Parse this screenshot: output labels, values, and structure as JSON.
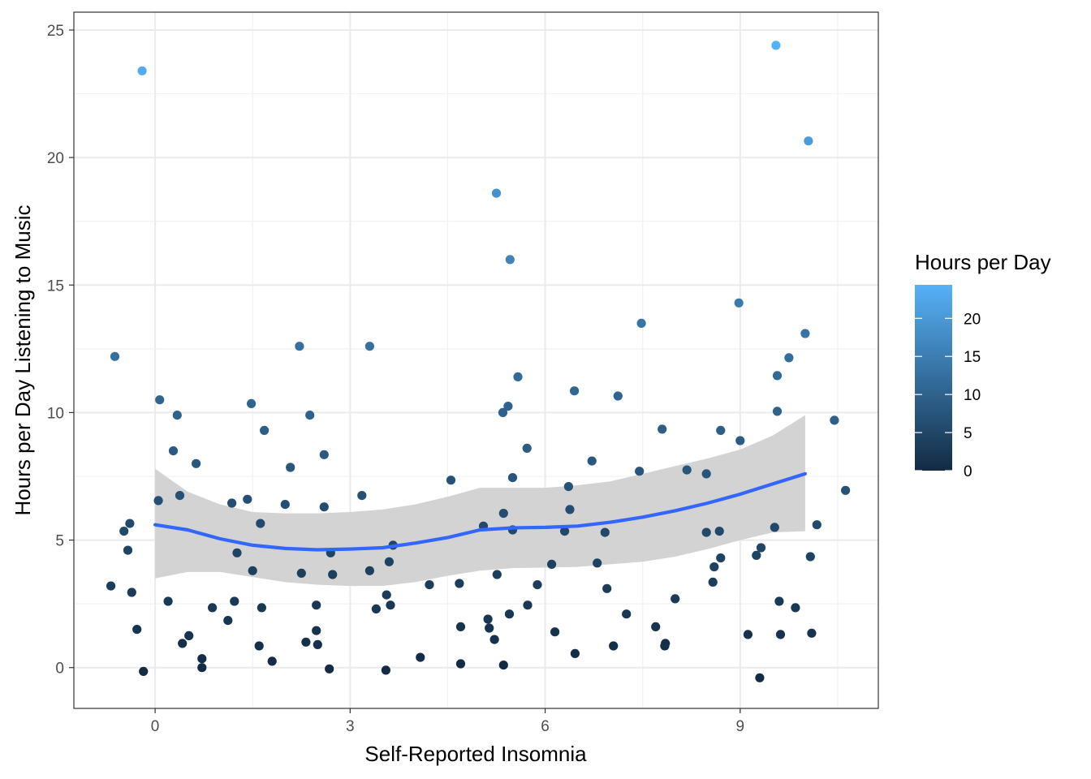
{
  "chart_data": {
    "type": "scatter",
    "title": "",
    "xlabel": "Self-Reported Insomnia",
    "ylabel": "Hours per Day Listening to Music",
    "xlim": [
      -1.25,
      11.125
    ],
    "ylim": [
      -1.6,
      25.7
    ],
    "x_ticks": [
      0,
      3,
      6,
      9
    ],
    "y_ticks": [
      0,
      5,
      10,
      15,
      20,
      25
    ],
    "grid": true,
    "legend": {
      "title": "Hours per Day",
      "position": "right",
      "type": "colorbar",
      "ticks": [
        0,
        5,
        10,
        15,
        20
      ],
      "range": [
        0,
        24.4
      ],
      "color_low": "#132B43",
      "color_high": "#56B1F7"
    },
    "colors": {
      "smooth_line": "#3366FF",
      "ribbon": "#D3D3D3",
      "panel_border": "#333333",
      "grid_major": "#EBEBEB",
      "grid_minor": "#F2F2F2"
    },
    "points": [
      [
        -0.68,
        3.2
      ],
      [
        -0.62,
        12.2
      ],
      [
        -0.48,
        5.35
      ],
      [
        -0.42,
        4.6
      ],
      [
        -0.39,
        5.65
      ],
      [
        -0.36,
        2.95
      ],
      [
        -0.28,
        1.5
      ],
      [
        -0.2,
        23.4
      ],
      [
        -0.18,
        -0.15
      ],
      [
        0.05,
        6.55
      ],
      [
        0.07,
        10.5
      ],
      [
        0.2,
        2.6
      ],
      [
        0.28,
        8.5
      ],
      [
        0.34,
        9.9
      ],
      [
        0.38,
        6.75
      ],
      [
        0.42,
        0.95
      ],
      [
        0.52,
        1.25
      ],
      [
        0.63,
        8.0
      ],
      [
        0.72,
        0.35
      ],
      [
        0.72,
        0.0
      ],
      [
        0.88,
        2.35
      ],
      [
        1.12,
        1.85
      ],
      [
        1.18,
        6.45
      ],
      [
        1.22,
        2.6
      ],
      [
        1.26,
        4.5
      ],
      [
        1.42,
        6.6
      ],
      [
        1.48,
        10.35
      ],
      [
        1.5,
        3.8
      ],
      [
        1.6,
        0.85
      ],
      [
        1.62,
        5.65
      ],
      [
        1.64,
        2.35
      ],
      [
        1.68,
        9.3
      ],
      [
        1.8,
        0.25
      ],
      [
        2.0,
        6.4
      ],
      [
        2.08,
        7.85
      ],
      [
        2.22,
        12.6
      ],
      [
        2.25,
        3.7
      ],
      [
        2.32,
        1.0
      ],
      [
        2.38,
        9.9
      ],
      [
        2.48,
        1.45
      ],
      [
        2.48,
        2.45
      ],
      [
        2.5,
        0.9
      ],
      [
        2.6,
        8.35
      ],
      [
        2.6,
        6.3
      ],
      [
        2.68,
        -0.05
      ],
      [
        2.7,
        4.5
      ],
      [
        2.73,
        3.65
      ],
      [
        3.18,
        6.75
      ],
      [
        3.3,
        12.6
      ],
      [
        3.3,
        3.8
      ],
      [
        3.4,
        2.3
      ],
      [
        3.55,
        -0.1
      ],
      [
        3.56,
        2.85
      ],
      [
        3.6,
        4.15
      ],
      [
        3.62,
        2.45
      ],
      [
        3.66,
        4.8
      ],
      [
        4.08,
        0.4
      ],
      [
        4.22,
        3.25
      ],
      [
        4.55,
        7.35
      ],
      [
        4.68,
        3.3
      ],
      [
        4.7,
        1.6
      ],
      [
        4.7,
        0.15
      ],
      [
        5.05,
        5.55
      ],
      [
        5.12,
        1.9
      ],
      [
        5.14,
        1.55
      ],
      [
        5.22,
        1.1
      ],
      [
        5.25,
        18.6
      ],
      [
        5.26,
        3.65
      ],
      [
        5.35,
        10.0
      ],
      [
        5.36,
        6.05
      ],
      [
        5.36,
        0.1
      ],
      [
        5.43,
        10.25
      ],
      [
        5.45,
        2.1
      ],
      [
        5.46,
        16.0
      ],
      [
        5.5,
        5.4
      ],
      [
        5.5,
        7.45
      ],
      [
        5.58,
        11.4
      ],
      [
        5.72,
        8.6
      ],
      [
        5.73,
        2.45
      ],
      [
        5.88,
        3.25
      ],
      [
        6.1,
        4.05
      ],
      [
        6.15,
        1.4
      ],
      [
        6.3,
        5.35
      ],
      [
        6.36,
        7.1
      ],
      [
        6.38,
        6.2
      ],
      [
        6.45,
        10.85
      ],
      [
        6.46,
        0.55
      ],
      [
        6.72,
        8.1
      ],
      [
        6.8,
        4.1
      ],
      [
        6.92,
        5.3
      ],
      [
        6.95,
        3.1
      ],
      [
        7.05,
        0.85
      ],
      [
        7.12,
        10.65
      ],
      [
        7.25,
        2.1
      ],
      [
        7.45,
        7.7
      ],
      [
        7.48,
        13.5
      ],
      [
        7.7,
        1.6
      ],
      [
        7.8,
        9.35
      ],
      [
        7.84,
        0.85
      ],
      [
        7.85,
        0.95
      ],
      [
        8.0,
        2.7
      ],
      [
        8.18,
        7.75
      ],
      [
        8.48,
        5.3
      ],
      [
        8.48,
        7.6
      ],
      [
        8.58,
        3.35
      ],
      [
        8.6,
        3.95
      ],
      [
        8.68,
        5.35
      ],
      [
        8.7,
        4.3
      ],
      [
        8.7,
        9.3
      ],
      [
        8.98,
        14.3
      ],
      [
        9.0,
        8.9
      ],
      [
        9.12,
        1.3
      ],
      [
        9.25,
        4.4
      ],
      [
        9.3,
        -0.4
      ],
      [
        9.32,
        4.7
      ],
      [
        9.53,
        5.5
      ],
      [
        9.55,
        24.4
      ],
      [
        9.57,
        11.45
      ],
      [
        9.57,
        10.05
      ],
      [
        9.6,
        2.6
      ],
      [
        9.62,
        1.3
      ],
      [
        9.75,
        12.15
      ],
      [
        9.85,
        2.35
      ],
      [
        10.0,
        13.1
      ],
      [
        10.05,
        20.65
      ],
      [
        10.08,
        4.35
      ],
      [
        10.1,
        1.35
      ],
      [
        10.18,
        5.6
      ],
      [
        10.45,
        9.7
      ],
      [
        10.62,
        6.95
      ]
    ],
    "smooth": {
      "x": [
        0.0,
        0.5,
        1.0,
        1.5,
        2.0,
        2.5,
        3.0,
        3.5,
        4.0,
        4.5,
        5.0,
        5.5,
        6.0,
        6.5,
        7.0,
        7.5,
        8.0,
        8.5,
        9.0,
        9.5,
        10.0
      ],
      "y": [
        5.6,
        5.4,
        5.05,
        4.8,
        4.67,
        4.62,
        4.65,
        4.7,
        4.88,
        5.1,
        5.4,
        5.48,
        5.5,
        5.55,
        5.7,
        5.9,
        6.15,
        6.45,
        6.8,
        7.2,
        7.6
      ],
      "lower": [
        3.5,
        3.75,
        3.75,
        3.55,
        3.35,
        3.25,
        3.2,
        3.2,
        3.35,
        3.6,
        3.8,
        3.9,
        3.92,
        3.95,
        4.05,
        4.15,
        4.35,
        4.65,
        5.0,
        5.3,
        5.35
      ],
      "upper": [
        7.8,
        6.9,
        6.4,
        6.1,
        6.05,
        6.05,
        6.1,
        6.2,
        6.4,
        6.7,
        7.05,
        7.05,
        7.05,
        7.15,
        7.3,
        7.6,
        7.9,
        8.2,
        8.55,
        9.1,
        9.9
      ]
    }
  }
}
